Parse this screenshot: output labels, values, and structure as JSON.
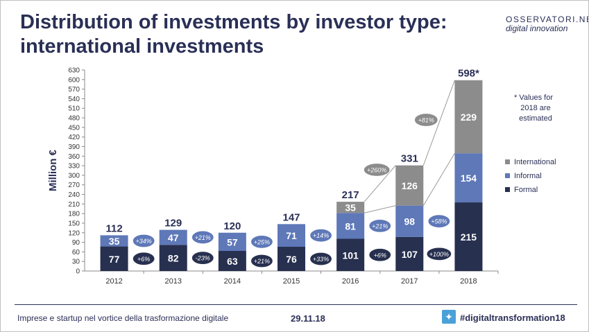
{
  "title_line1": "Distribution of investments by investor type:",
  "title_line2": "international investments",
  "logo_name": "OSSERVATORI.NET",
  "logo_sub": "digital innovation",
  "footer_left": "Imprese e startup nel vortice della trasformazione digitale",
  "footer_date": "29.11.18",
  "footer_hashtag": "#digitaltransformation18",
  "note_line1": "* Values for",
  "note_line2": "2018 are",
  "note_line3": "estimated",
  "colors": {
    "formal": "#27304f",
    "informal": "#5e78b8",
    "international": "#8c8c8c",
    "title": "#2a2f56",
    "twitter": "#4aa1d8"
  },
  "chart_data": {
    "type": "bar",
    "stacked": true,
    "ylabel": "Million €",
    "ylim": [
      0,
      630
    ],
    "ytick_step": 30,
    "grid": false,
    "legend_position": "right",
    "categories": [
      "2012",
      "2013",
      "2014",
      "2015",
      "2016",
      "2017",
      "2018"
    ],
    "series": [
      {
        "name": "Formal",
        "values": [
          77,
          82,
          63,
          76,
          101,
          107,
          215
        ]
      },
      {
        "name": "Informal",
        "values": [
          35,
          47,
          57,
          71,
          81,
          98,
          154
        ]
      },
      {
        "name": "International",
        "values": [
          null,
          null,
          null,
          null,
          35,
          126,
          229
        ]
      }
    ],
    "totals": [
      "112",
      "129",
      "120",
      "147",
      "217",
      "331",
      "598*"
    ],
    "growth_formal": [
      "+6%",
      "-23%",
      "+21%",
      "+33%",
      "+6%",
      "+100%"
    ],
    "growth_informal": [
      "+34%",
      "+21%",
      "+25%",
      "+14%",
      "+21%",
      "+58%"
    ],
    "growth_international": [
      "+260%",
      "+81%"
    ]
  }
}
